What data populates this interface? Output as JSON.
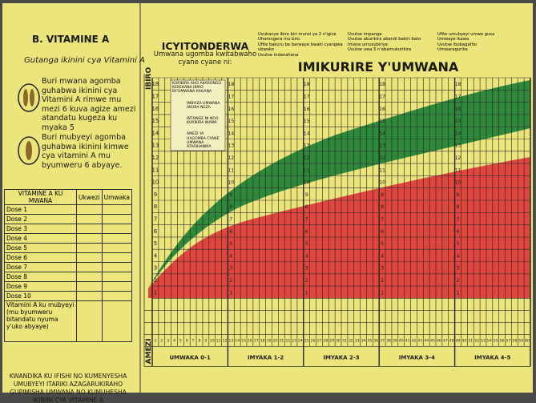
{
  "vitamin": {
    "title": "B. VITAMINE A",
    "subtitle": "Gutanga ikinini cya Vitamini A",
    "child_note": "Buri mwana agomba guhabwa ikinini cya Vitamini A rimwe mu mezi 6 kuva agize amezi atandatu kugeza ku myaka 5",
    "mother_note": "Buri mubyeyi agomba guhabwa ikinini kimwe cya vitamini A mu byumweru 6 abyaye."
  },
  "table": {
    "headers": [
      "VITAMINE A KU MWANA",
      "Ukwezi",
      "Umwaka"
    ],
    "rows": [
      "Dose 1",
      "Dose 2",
      "Dose 3",
      "Dose 4",
      "Dose 5",
      "Dose 6",
      "Dose 7",
      "Dose 8",
      "Dose 9",
      "Dose 10"
    ],
    "mother_row": "Vitamini A ku mubyeyi (mu byumweru bitandatu nyuma y'uko abyaye)"
  },
  "footer_note": "KWANDIKA KU IFISHI NO KUMENYESHA UMUBYEYI ITARIKI AZAGARUKIRAHO GUPIMISHA UMWANA NO KUMUHESHA IKININI CYA VITAMINE A",
  "attention": {
    "title": "ICYITONDERWA",
    "subtitle": "Umwana ugomba kwitabwaho cyane cyane ni:"
  },
  "risk_list": [
    [
      "Uvukanye ibiro biri munsi ya 2 n'igice",
      "Uhorongera mu biro",
      "Ufite bakuru be barwaye bwaki cyangwa ubwoko",
      "Uvutse indanahana"
    ],
    [
      "Uvutse impanga",
      "Uvutse akurikira abandi bakiri bato",
      "Imana umusubiriye",
      "Uvutse uwa 5 n'abamukurikira"
    ],
    [
      "Ufite umubyeyi umwe gusa",
      "Umwaye ikawa",
      "Uvutse ibobagatho",
      "Umwaragurika"
    ]
  ],
  "growth_chart": {
    "title": "IMIKURIRE Y'UMWANA",
    "y_label": "IBIRO",
    "x_label": "AMEZI",
    "legend": [
      "KURIKIRA AHO AKARONGO KEREKANA IBIRO BY'UMWANA KAGANA",
      "IMBYIZA UMWANA AKURA NEZA",
      "INTONGE NI NGO KURIKIRA INAMA",
      "AMEZI YA HAGOMBA CYANE UMWANA ATARIHANIRA"
    ],
    "weight_labels": [
      1,
      2,
      3,
      4,
      5,
      6,
      7,
      8,
      9,
      10,
      11,
      12,
      13,
      14,
      15,
      16,
      17,
      18
    ],
    "month_labels": [
      1,
      2,
      3,
      4,
      5,
      6,
      7,
      8,
      9,
      10,
      11,
      12,
      13,
      14,
      15,
      16,
      17,
      18,
      19,
      20,
      21,
      22,
      23,
      24,
      25,
      26,
      27,
      28,
      29,
      30,
      31,
      32,
      33,
      34,
      35,
      36,
      37,
      38,
      39,
      40,
      41,
      42,
      43,
      44,
      45,
      46,
      47,
      48,
      49,
      50,
      51,
      52,
      53,
      54,
      55,
      56,
      57,
      58,
      59,
      60
    ],
    "age_groups": [
      "UMWAKA 0-1",
      "IMYAKA 1-2",
      "IMYAKA 2-3",
      "IMYAKA 3-4",
      "IMYAKA 4-5"
    ]
  }
}
